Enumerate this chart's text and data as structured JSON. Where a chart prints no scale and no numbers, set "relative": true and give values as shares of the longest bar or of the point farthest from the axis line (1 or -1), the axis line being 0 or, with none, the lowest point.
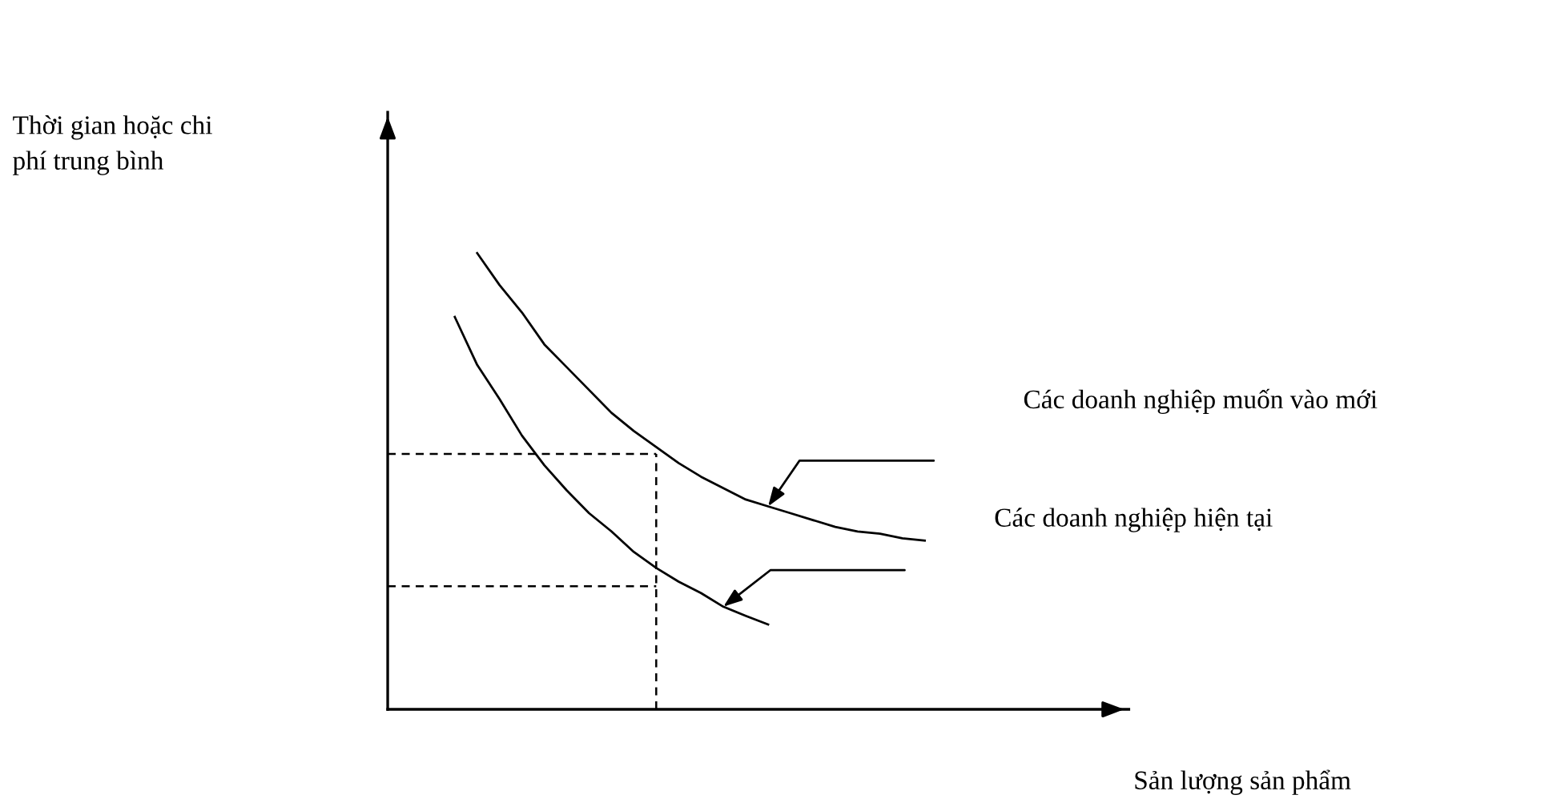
{
  "chart_data": {
    "type": "line",
    "relative": true,
    "annotations": [
      "Thời gian hoặc chi\nphí trung bình",
      "Sản lượng sản phẩm"
    ],
    "marker": "none",
    "categories": [
      null,
      null,
      null,
      null,
      null,
      null,
      null,
      null,
      null,
      null,
      null,
      null,
      null,
      null,
      null,
      null,
      null,
      null,
      null,
      null,
      null,
      null,
      null,
      null,
      null
    ],
    "series": [
      {
        "name": "Các doanh nghiệp muốn vào mới",
        "color": "#000000",
        "line_style": "solid",
        "values": [
          null,
          null,
          null,
          null,
          1.0,
          0.93,
          0.87,
          0.8,
          0.75,
          0.7,
          0.65,
          0.61,
          0.575,
          0.54,
          0.51,
          0.485,
          0.46,
          0.445,
          0.43,
          0.415,
          0.4,
          0.39,
          0.385,
          0.375,
          0.37
        ]
      },
      {
        "name": "Các doanh nghiệp hiện tại",
        "color": "#000000",
        "line_style": "solid",
        "values": [
          null,
          null,
          null,
          0.86,
          0.755,
          0.68,
          0.6,
          0.535,
          0.48,
          0.43,
          0.39,
          0.345,
          0.31,
          0.28,
          0.255,
          0.225,
          0.205,
          0.186,
          null,
          null,
          null,
          null,
          null,
          null,
          null
        ]
      },
      {
        "color": "#000000",
        "line_style": "dashed",
        "values": [
          0.56,
          0.56,
          0.56,
          0.56,
          0.56,
          0.56,
          0.56,
          0.56,
          0.56,
          0.56,
          0.56,
          0.56,
          0.56,
          null,
          null,
          null,
          null,
          null,
          null,
          null,
          null,
          null,
          null,
          null,
          null
        ]
      },
      {
        "color": "#000000",
        "line_style": "dashed",
        "values": [
          0.27,
          0.27,
          0.27,
          0.27,
          0.27,
          0.27,
          0.27,
          0.27,
          0.27,
          0.27,
          0.27,
          0.27,
          0.27,
          null,
          null,
          null,
          null,
          null,
          null,
          null,
          null,
          null,
          null,
          null,
          null
        ]
      }
    ]
  }
}
